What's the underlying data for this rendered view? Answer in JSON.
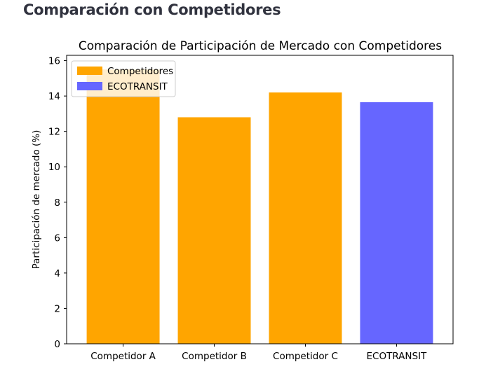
{
  "page": {
    "heading": "Comparación con Competidores"
  },
  "chart_data": {
    "type": "bar",
    "title": "Comparación de Participación de Mercado con Competidores",
    "xlabel": "",
    "ylabel": "Participación de mercado (%)",
    "categories": [
      "Competidor A",
      "Competidor B",
      "Competidor C",
      "ECOTRANSIT"
    ],
    "values": [
      15.5,
      12.8,
      14.2,
      13.65
    ],
    "bar_series": [
      "Competidores",
      "Competidores",
      "Competidores",
      "ECOTRANSIT"
    ],
    "series": [
      {
        "name": "Competidores",
        "color": "#ffa500"
      },
      {
        "name": "ECOTRANSIT",
        "color": "#6666ff"
      }
    ],
    "ylim": [
      0,
      16.3
    ],
    "yticks": [
      0,
      2,
      4,
      6,
      8,
      10,
      12,
      14,
      16
    ],
    "grid": false,
    "legend_position": "top-left"
  }
}
